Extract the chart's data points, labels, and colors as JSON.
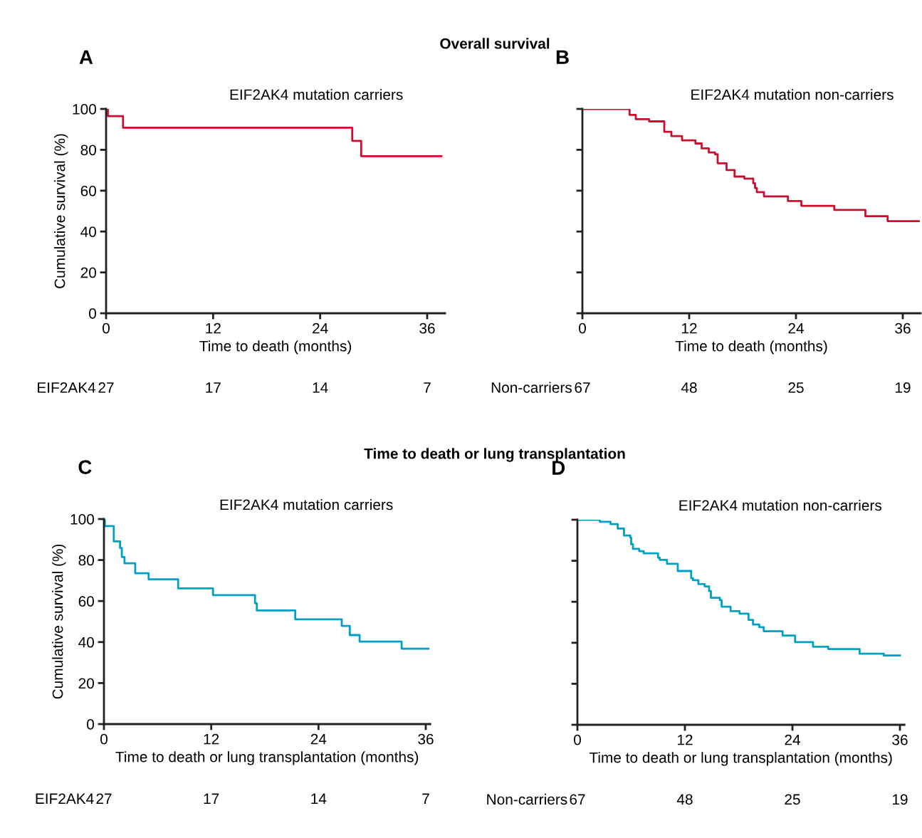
{
  "chart_data": [
    {
      "type": "step",
      "title": "A",
      "subtitle": "EIF2AK4 mutation carriers",
      "xlabel": "Time to death (months)",
      "ylabel": "Cumulative survival (%)",
      "xlim": [
        0,
        38
      ],
      "ylim": [
        0,
        100
      ],
      "xticks": [
        0,
        12,
        24,
        36
      ],
      "yticks": [
        0,
        20,
        40,
        60,
        80,
        100
      ],
      "grid": false,
      "legend": false,
      "series": [
        {
          "color": "#c8102e",
          "x": [
            0,
            0.2,
            1.9,
            27.6,
            28.6,
            37.6
          ],
          "values": [
            100,
            96.5,
            90.8,
            84.4,
            76.9,
            76.9
          ]
        }
      ],
      "annotations": [
        "Overall survival",
        "EIF2AK4",
        "27",
        "17",
        "14",
        "7"
      ]
    },
    {
      "type": "step",
      "title": "B",
      "subtitle": "EIF2AK4 mutation non-carriers",
      "xlabel": "Time to death (months)",
      "xlim": [
        0,
        38
      ],
      "ylim": [
        0,
        100
      ],
      "xticks": [
        0,
        12,
        24,
        36
      ],
      "yticks": [
        0,
        20,
        40,
        60,
        80,
        100
      ],
      "tick_labels": "x",
      "grid": false,
      "legend": false,
      "series": [
        {
          "color": "#c8102e",
          "x": [
            0,
            5.3,
            6.0,
            7.5,
            9.2,
            10.0,
            11.2,
            12.7,
            13.4,
            14.2,
            14.9,
            15.2,
            16.2,
            17.1,
            18.2,
            19.2,
            19.4,
            19.6,
            20.4,
            23.1,
            24.6,
            28.3,
            31.8,
            34.3,
            37.8
          ],
          "values": [
            100,
            97.1,
            95.0,
            93.9,
            88.8,
            86.7,
            84.6,
            83.1,
            80.7,
            78.7,
            77.8,
            73.4,
            70.1,
            66.9,
            65.9,
            63.6,
            61.3,
            59.3,
            57.2,
            54.9,
            52.6,
            50.6,
            47.5,
            45.1,
            45.1
          ]
        }
      ],
      "annotations": [
        "Non-carriers",
        "67",
        "48",
        "25",
        "19"
      ]
    },
    {
      "type": "step",
      "title": "C",
      "subtitle": "EIF2AK4 mutation carriers",
      "xlabel": "Time to death or lung transplantation (months)",
      "ylabel": "Cumulative survival (%)",
      "xlim": [
        0,
        36.5
      ],
      "ylim": [
        0,
        100
      ],
      "xticks": [
        0,
        12,
        24,
        36
      ],
      "yticks": [
        0,
        20,
        40,
        60,
        80,
        100
      ],
      "grid": false,
      "legend": false,
      "series": [
        {
          "color": "#00a0c6",
          "x": [
            0,
            0.1,
            1.1,
            1.8,
            2.0,
            2.3,
            3.5,
            5.0,
            8.3,
            12.2,
            16.9,
            17.1,
            21.4,
            26.6,
            27.5,
            28.6,
            33.3,
            36.3
          ],
          "values": [
            100,
            96.6,
            89.1,
            85.9,
            81.5,
            78.4,
            73.6,
            70.6,
            66.2,
            62.9,
            58.9,
            55.4,
            51.1,
            47.9,
            43.4,
            40.2,
            36.8,
            36.8
          ]
        }
      ],
      "annotations": [
        "Time to death or lung transplantation",
        "EIF2AK4",
        "27",
        "17",
        "14",
        "7"
      ]
    },
    {
      "type": "step",
      "title": "D",
      "subtitle": "EIF2AK4 mutation non-carriers",
      "xlabel": "Time to death or lung transplantation (months)",
      "xlim": [
        0,
        36.5
      ],
      "ylim": [
        0,
        100
      ],
      "xticks": [
        0,
        12,
        24,
        36
      ],
      "yticks": [
        0,
        20,
        40,
        60,
        80,
        100
      ],
      "tick_labels": "x",
      "grid": false,
      "legend": false,
      "series": [
        {
          "color": "#00a0c6",
          "x": [
            0,
            2.5,
            3.7,
            4.5,
            5.2,
            5.9,
            6.0,
            6.2,
            6.9,
            7.4,
            9.0,
            9.2,
            10.0,
            11.2,
            12.7,
            12.9,
            13.5,
            14.2,
            14.7,
            14.9,
            15.9,
            16.1,
            17.1,
            18.1,
            19.1,
            19.6,
            20.3,
            20.8,
            22.9,
            24.3,
            26.3,
            28.0,
            31.5,
            34.2,
            36.0
          ],
          "values": [
            100,
            99.0,
            97.9,
            95.7,
            92.3,
            91.3,
            88.1,
            85.8,
            84.7,
            83.6,
            81.5,
            80.4,
            78.5,
            75.0,
            71.5,
            70.5,
            68.6,
            67.5,
            65.2,
            61.9,
            60.8,
            57.6,
            55.4,
            54.2,
            51.2,
            48.9,
            47.6,
            45.6,
            43.5,
            40.3,
            38.1,
            36.9,
            34.7,
            33.8,
            33.8
          ]
        }
      ],
      "annotations": [
        "Non-carriers",
        "67",
        "48",
        "25",
        "19"
      ]
    }
  ]
}
